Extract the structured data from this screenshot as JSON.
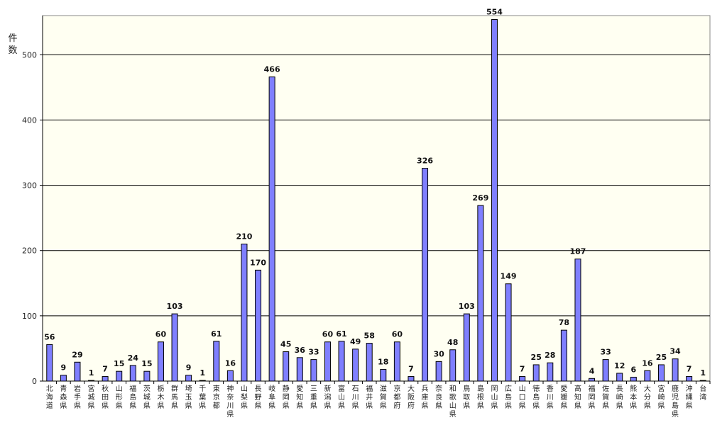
{
  "chart_data": {
    "type": "bar",
    "title": "",
    "xlabel": "",
    "ylabel": "件数",
    "ylim": [
      0,
      560
    ],
    "yticks": [
      0,
      100,
      200,
      300,
      400,
      500
    ],
    "grid": true,
    "colors": {
      "bar": "#7f7fff",
      "bar_edge": "#000000",
      "plot_bg": "#fffff2",
      "grid": "#000000"
    },
    "categories": [
      "北海道",
      "青森県",
      "岩手県",
      "宮城県",
      "秋田県",
      "山形県",
      "福島県",
      "茨城県",
      "栃木県",
      "群馬県",
      "埼玉県",
      "千葉県",
      "東京都",
      "神奈川県",
      "山梨県",
      "長野県",
      "岐阜県",
      "静岡県",
      "愛知県",
      "三重県",
      "新潟県",
      "富山県",
      "石川県",
      "福井県",
      "滋賀県",
      "京都府",
      "大阪府",
      "兵庫県",
      "奈良県",
      "和歌山県",
      "鳥取県",
      "島根県",
      "岡山県",
      "広島県",
      "山口県",
      "徳島県",
      "香川県",
      "愛媛県",
      "高知県",
      "福岡県",
      "佐賀県",
      "長崎県",
      "熊本県",
      "大分県",
      "宮崎県",
      "鹿児島県",
      "沖縄県",
      "台湾"
    ],
    "values": [
      56,
      9,
      29,
      1,
      7,
      15,
      24,
      15,
      60,
      103,
      9,
      1,
      61,
      16,
      210,
      170,
      466,
      45,
      36,
      33,
      60,
      61,
      49,
      58,
      18,
      60,
      7,
      326,
      30,
      48,
      103,
      269,
      554,
      149,
      7,
      25,
      28,
      78,
      187,
      4,
      33,
      12,
      6,
      16,
      25,
      34,
      7,
      1
    ]
  }
}
